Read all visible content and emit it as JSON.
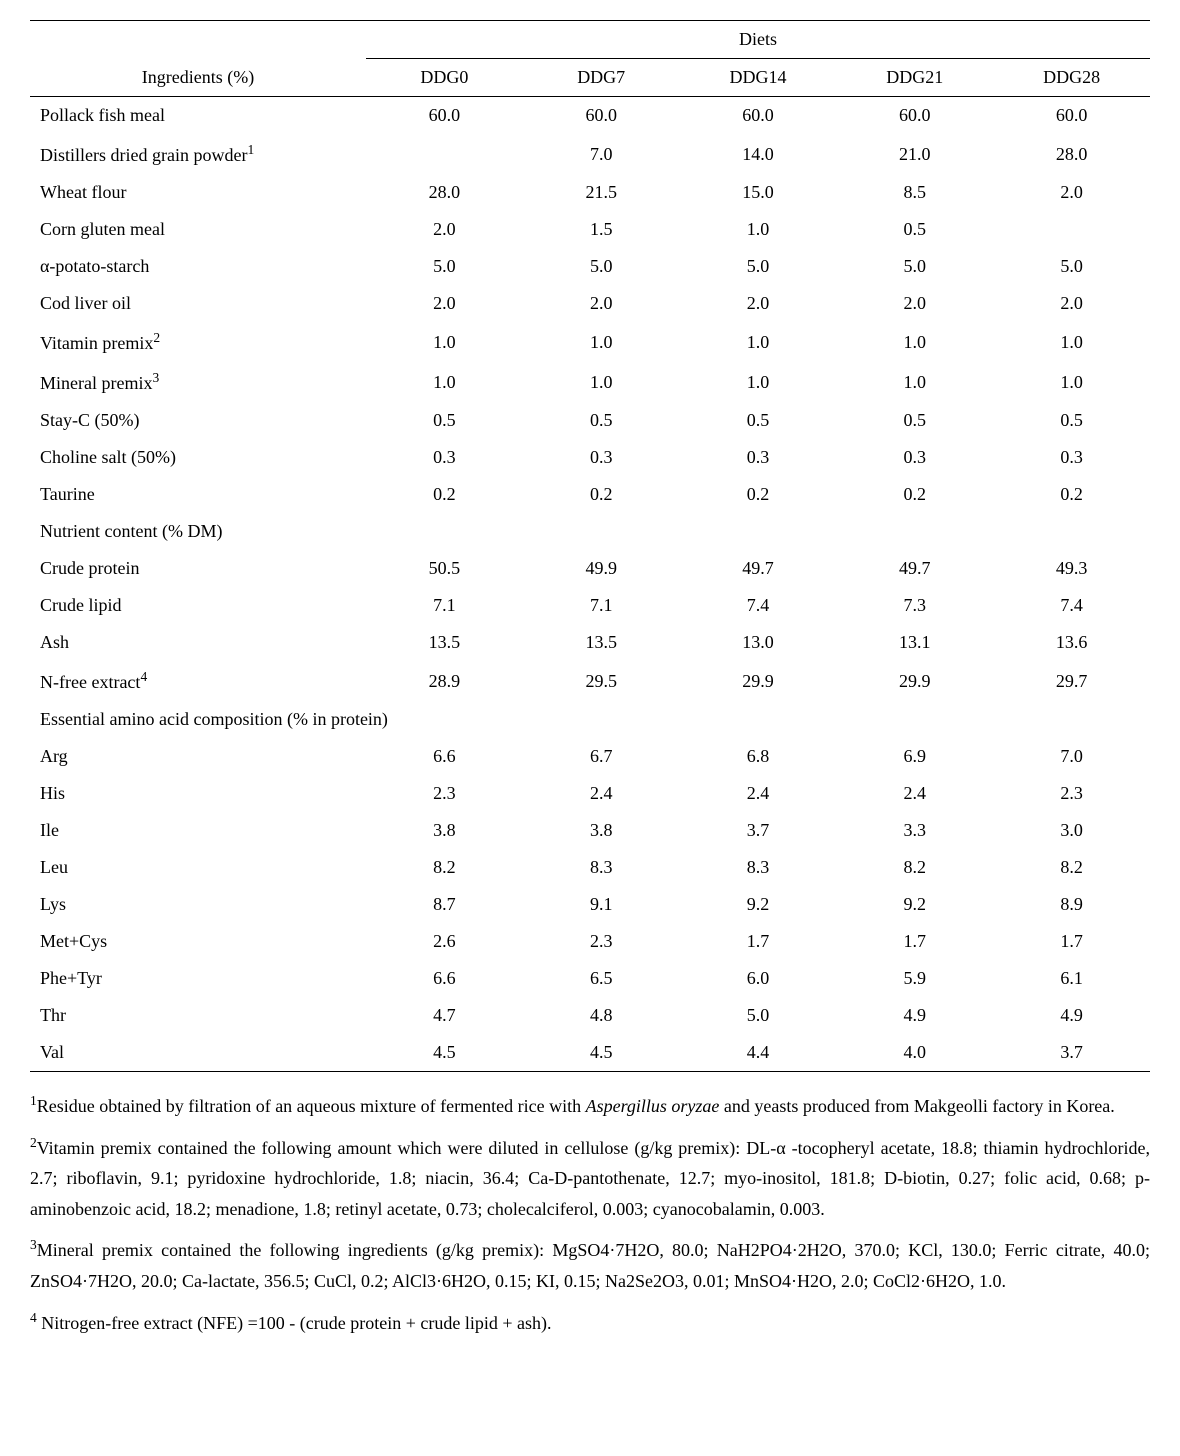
{
  "table": {
    "header_group": "Diets",
    "col_label": "Ingredients (%)",
    "columns": [
      "DDG0",
      "DDG7",
      "DDG14",
      "DDG21",
      "DDG28"
    ],
    "ingredients": [
      {
        "label": "Pollack fish meal",
        "sup": "",
        "vals": [
          "60.0",
          "60.0",
          "60.0",
          "60.0",
          "60.0"
        ]
      },
      {
        "label": "Distillers dried grain powder",
        "sup": "1",
        "vals": [
          "",
          "7.0",
          "14.0",
          "21.0",
          "28.0"
        ]
      },
      {
        "label": "Wheat flour",
        "sup": "",
        "vals": [
          "28.0",
          "21.5",
          "15.0",
          "8.5",
          "2.0"
        ]
      },
      {
        "label": "Corn gluten meal",
        "sup": "",
        "vals": [
          "2.0",
          "1.5",
          "1.0",
          "0.5",
          ""
        ]
      },
      {
        "label": "α-potato-starch",
        "sup": "",
        "vals": [
          "5.0",
          "5.0",
          "5.0",
          "5.0",
          "5.0"
        ]
      },
      {
        "label": "Cod liver oil",
        "sup": "",
        "vals": [
          "2.0",
          "2.0",
          "2.0",
          "2.0",
          "2.0"
        ]
      },
      {
        "label": "Vitamin premix",
        "sup": "2",
        "vals": [
          "1.0",
          "1.0",
          "1.0",
          "1.0",
          "1.0"
        ]
      },
      {
        "label": "Mineral premix",
        "sup": "3",
        "vals": [
          "1.0",
          "1.0",
          "1.0",
          "1.0",
          "1.0"
        ]
      },
      {
        "label": "Stay-C (50%)",
        "sup": "",
        "vals": [
          "0.5",
          "0.5",
          "0.5",
          "0.5",
          "0.5"
        ]
      },
      {
        "label": "Choline salt (50%)",
        "sup": "",
        "vals": [
          "0.3",
          "0.3",
          "0.3",
          "0.3",
          "0.3"
        ]
      },
      {
        "label": "Taurine",
        "sup": "",
        "vals": [
          "0.2",
          "0.2",
          "0.2",
          "0.2",
          "0.2"
        ]
      }
    ],
    "nutrient_header": "Nutrient content (% DM)",
    "nutrients": [
      {
        "label": "Crude protein",
        "sup": "",
        "vals": [
          "50.5",
          "49.9",
          "49.7",
          "49.7",
          "49.3"
        ]
      },
      {
        "label": "Crude lipid",
        "sup": "",
        "vals": [
          "7.1",
          "7.1",
          "7.4",
          "7.3",
          "7.4"
        ]
      },
      {
        "label": "Ash",
        "sup": "",
        "vals": [
          "13.5",
          "13.5",
          "13.0",
          "13.1",
          "13.6"
        ]
      },
      {
        "label": "N-free extract",
        "sup": "4",
        "vals": [
          "28.9",
          "29.5",
          "29.9",
          "29.9",
          "29.7"
        ]
      }
    ],
    "eaa_header": "Essential amino acid composition (% in protein)",
    "eaa": [
      {
        "label": "Arg",
        "sup": "",
        "vals": [
          "6.6",
          "6.7",
          "6.8",
          "6.9",
          "7.0"
        ]
      },
      {
        "label": "His",
        "sup": "",
        "vals": [
          "2.3",
          "2.4",
          "2.4",
          "2.4",
          "2.3"
        ]
      },
      {
        "label": "Ile",
        "sup": "",
        "vals": [
          "3.8",
          "3.8",
          "3.7",
          "3.3",
          "3.0"
        ]
      },
      {
        "label": "Leu",
        "sup": "",
        "vals": [
          "8.2",
          "8.3",
          "8.3",
          "8.2",
          "8.2"
        ]
      },
      {
        "label": "Lys",
        "sup": "",
        "vals": [
          "8.7",
          "9.1",
          "9.2",
          "9.2",
          "8.9"
        ]
      },
      {
        "label": "Met+Cys",
        "sup": "",
        "vals": [
          "2.6",
          "2.3",
          "1.7",
          "1.7",
          "1.7"
        ]
      },
      {
        "label": "Phe+Tyr",
        "sup": "",
        "vals": [
          "6.6",
          "6.5",
          "6.0",
          "5.9",
          "6.1"
        ]
      },
      {
        "label": "Thr",
        "sup": "",
        "vals": [
          "4.7",
          "4.8",
          "5.0",
          "4.9",
          "4.9"
        ]
      },
      {
        "label": "Val",
        "sup": "",
        "vals": [
          "4.5",
          "4.5",
          "4.4",
          "4.0",
          "3.7"
        ]
      }
    ]
  },
  "footnotes": {
    "f1_a": "Residue obtained by filtration of an aqueous mixture of fermented rice with ",
    "f1_italic": "Aspergillus oryzae",
    "f1_b": " and yeasts produced from Makgeolli factory in Korea.",
    "f2": "Vitamin premix contained the following amount which were diluted in cellulose (g/kg premix): DL-α -tocopheryl acetate, 18.8; thiamin hydrochloride, 2.7; riboflavin, 9.1; pyridoxine hydrochloride, 1.8; niacin, 36.4; Ca-D-pantothenate, 12.7; myo-inositol, 181.8; D-biotin, 0.27; folic acid, 0.68; p-aminobenzoic acid, 18.2; menadione, 1.8; retinyl acetate, 0.73; cholecalciferol, 0.003; cyanocobalamin, 0.003.",
    "f3": "Mineral premix contained the following ingredients (g/kg premix): MgSO4·7H2O, 80.0; NaH2PO4·2H2O, 370.0; KCl, 130.0; Ferric citrate, 40.0; ZnSO4·7H2O, 20.0; Ca-lactate, 356.5; CuCl, 0.2; AlCl3·6H2O, 0.15; KI, 0.15; Na2Se2O3, 0.01; MnSO4·H2O, 2.0; CoCl2·6H2O, 1.0.",
    "f4": " Nitrogen-free extract (NFE) =100 - (crude protein + crude lipid + ash)."
  },
  "style": {
    "col_widths": [
      "30%",
      "14%",
      "14%",
      "14%",
      "14%",
      "14%"
    ]
  }
}
